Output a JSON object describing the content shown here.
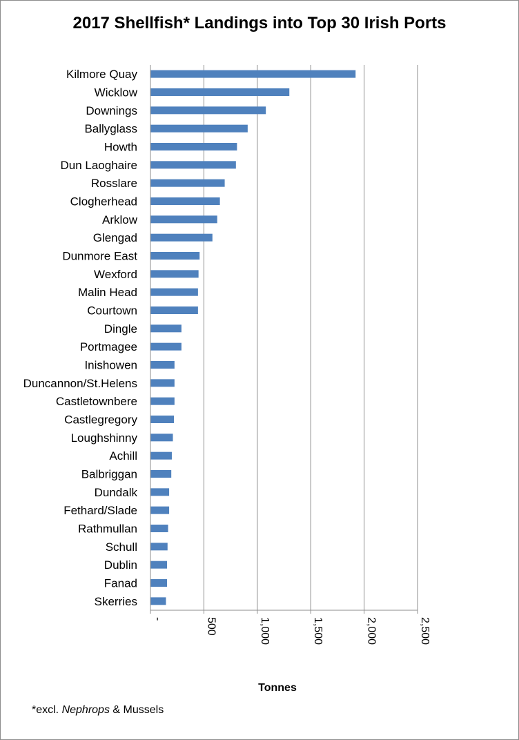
{
  "chart_data": {
    "type": "bar",
    "orientation": "horizontal",
    "title": "2017 Shellfish* Landings into Top 30 Irish Ports",
    "xlabel": "Tonnes",
    "ylabel": "",
    "xlim": [
      0,
      2500
    ],
    "x_ticks": [
      {
        "value": 0,
        "label": "-"
      },
      {
        "value": 500,
        "label": "500"
      },
      {
        "value": 1000,
        "label": "1,000"
      },
      {
        "value": 1500,
        "label": "1,500"
      },
      {
        "value": 2000,
        "label": "2,000"
      },
      {
        "value": 2500,
        "label": "2,500"
      }
    ],
    "grid": true,
    "bar_color": "#4f81bd",
    "categories": [
      "Kilmore Quay",
      "Wicklow",
      "Downings",
      "Ballyglass",
      "Howth",
      "Dun Laoghaire",
      "Rosslare",
      "Clogherhead",
      "Arklow",
      "Glengad",
      "Dunmore East",
      "Wexford",
      "Malin Head",
      "Courtown",
      "Dingle",
      "Portmagee",
      "Inishowen",
      "Duncannon/St.Helens",
      "Castletownbere",
      "Castlegregory",
      "Loughshinny",
      "Achill",
      "Balbriggan",
      "Dundalk",
      "Fethard/Slade",
      "Rathmullan",
      "Schull",
      "Dublin",
      "Fanad",
      "Skerries"
    ],
    "values": [
      1920,
      1300,
      1080,
      910,
      810,
      800,
      695,
      650,
      625,
      580,
      460,
      450,
      445,
      445,
      290,
      290,
      225,
      225,
      225,
      220,
      210,
      200,
      195,
      175,
      175,
      165,
      160,
      155,
      155,
      145
    ]
  },
  "footnote": {
    "prefix": "*excl. ",
    "italic": "Nephrops",
    "suffix": " & Mussels"
  }
}
